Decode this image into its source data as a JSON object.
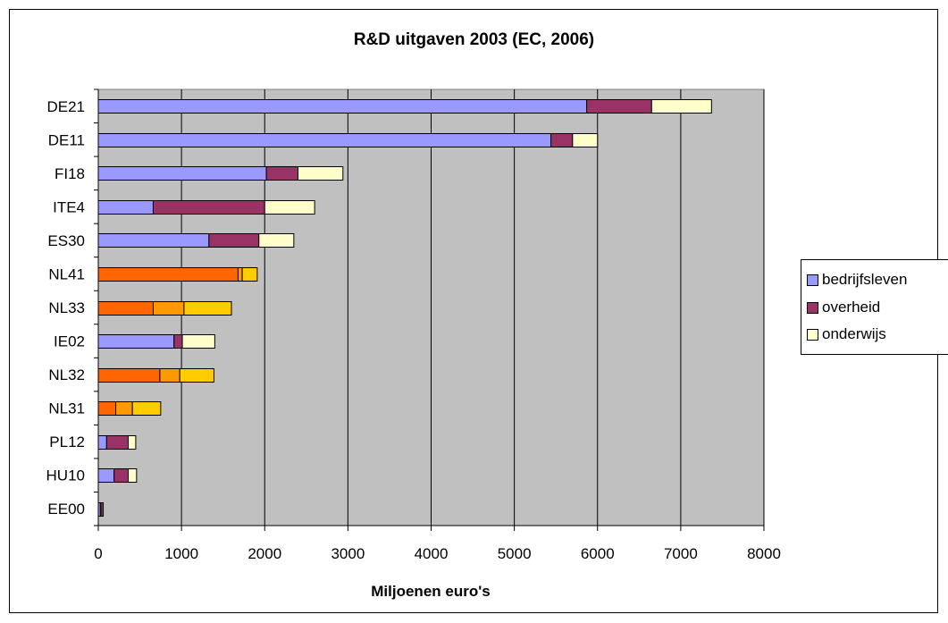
{
  "chart_data": {
    "type": "bar",
    "orientation": "horizontal",
    "stacked": true,
    "title": "R&D uitgaven 2003 (EC, 2006)",
    "xlabel": "Miljoenen euro's",
    "ylabel": "",
    "xlim": [
      0,
      8000
    ],
    "xticks": [
      0,
      1000,
      2000,
      3000,
      4000,
      5000,
      6000,
      7000,
      8000
    ],
    "grid": "vertical",
    "plot_background": "#c0c0c0",
    "legend_position": "right",
    "categories": [
      "DE21",
      "DE11",
      "FI18",
      "ITE4",
      "ES30",
      "NL41",
      "NL33",
      "IE02",
      "NL32",
      "NL31",
      "PL12",
      "HU10",
      "EE00"
    ],
    "series": [
      {
        "name": "bedrijfsleven",
        "color": "#9999ff",
        "values": [
          5870,
          5440,
          2020,
          660,
          1330,
          1680,
          660,
          910,
          740,
          210,
          100,
          190,
          25
        ]
      },
      {
        "name": "overheid",
        "color": "#993366",
        "values": [
          780,
          260,
          380,
          1340,
          600,
          50,
          370,
          100,
          240,
          200,
          260,
          170,
          20
        ]
      },
      {
        "name": "onderwijs",
        "color": "#ffffcc",
        "values": [
          720,
          300,
          540,
          600,
          420,
          180,
          570,
          390,
          410,
          340,
          90,
          100,
          15
        ]
      }
    ],
    "highlight_categories": [
      "NL41",
      "NL33",
      "NL32",
      "NL31"
    ],
    "highlight_colors": [
      "#ff6600",
      "#ff9900",
      "#ffcc00"
    ]
  }
}
